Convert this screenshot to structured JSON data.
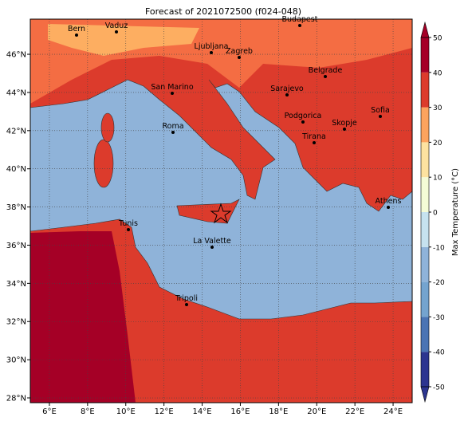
{
  "title": "Forecast of 2021072500 (f024-048)",
  "map": {
    "xlim": [
      5,
      25
    ],
    "ylim": [
      27.75,
      47.84
    ],
    "lon_ticks": [
      {
        "value": 6,
        "label": "6°E"
      },
      {
        "value": 8,
        "label": "8°E"
      },
      {
        "value": 10,
        "label": "10°E"
      },
      {
        "value": 12,
        "label": "12°E"
      },
      {
        "value": 14,
        "label": "14°E"
      },
      {
        "value": 16,
        "label": "16°E"
      },
      {
        "value": 18,
        "label": "18°E"
      },
      {
        "value": 20,
        "label": "20°E"
      },
      {
        "value": 22,
        "label": "22°E"
      },
      {
        "value": 24,
        "label": "24°E"
      }
    ],
    "lat_ticks": [
      {
        "value": 28,
        "label": "28°N"
      },
      {
        "value": 30,
        "label": "30°N"
      },
      {
        "value": 32,
        "label": "32°N"
      },
      {
        "value": 34,
        "label": "34°N"
      },
      {
        "value": 36,
        "label": "36°N"
      },
      {
        "value": 38,
        "label": "38°N"
      },
      {
        "value": 40,
        "label": "40°N"
      },
      {
        "value": 42,
        "label": "42°N"
      },
      {
        "value": 44,
        "label": "44°N"
      },
      {
        "value": 46,
        "label": "46°N"
      }
    ],
    "cities": [
      "Bern",
      "Vaduz",
      "Budapest",
      "Ljubljana",
      "Zagreb",
      "Belgrade",
      "San Marino",
      "Sarajevo",
      "Podgorica",
      "Sofia",
      "Skopje",
      "Roma",
      "Tirana",
      "Athens",
      "Tunis",
      "La Valette",
      "Tripoli"
    ]
  },
  "colorbar": {
    "label": "Max Temperature (°C)",
    "ticks": [
      50,
      40,
      30,
      20,
      10,
      0,
      -10,
      -20,
      -30,
      -40,
      -50
    ],
    "colors": [
      "#2c3590",
      "#4a74b4",
      "#74a4cf",
      "#8fb3d9",
      "#c6e2ef",
      "#f4fbd6",
      "#fde2a0",
      "#fca35e",
      "#dc3b2c",
      "#a50026"
    ]
  }
}
